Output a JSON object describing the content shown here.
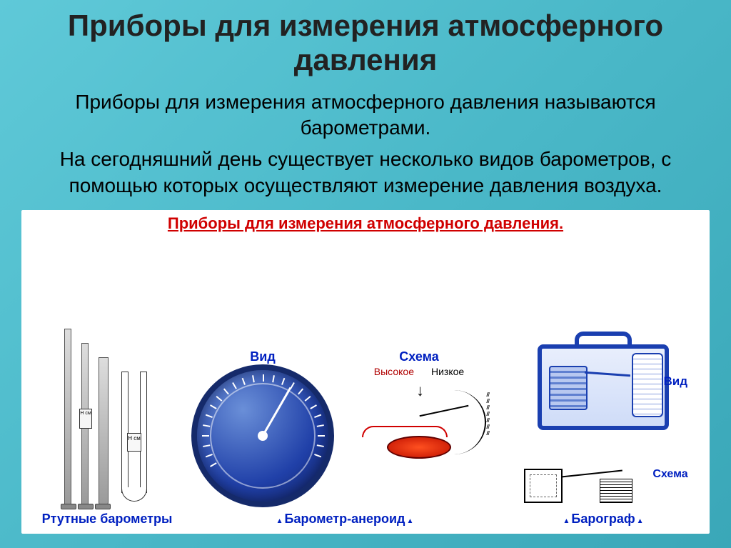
{
  "title": "Приборы для измерения атмосферного давления",
  "subtitle_plain": "Приборы для измерения атмосферного давления называются ",
  "subtitle_bold": "барометрами.",
  "description": "На сегодняшний день существует несколько видов барометров, с помощью которых осуществляют измерение давления воздуха.",
  "figure": {
    "title": "Приборы для измерения атмосферного давления.",
    "mercury": {
      "caption": "Ртутные   барометры",
      "scale_label": "Н\nсм"
    },
    "aneroid": {
      "view_label": "Вид",
      "schema_label": "Схема",
      "high": "Высокое",
      "low": "Низкое",
      "caption": "Барометр-анероид"
    },
    "barograph": {
      "view_label": "Вид",
      "schema_label": "Схема",
      "caption": "Барограф"
    },
    "colors": {
      "title_color": "#d00000",
      "label_color": "#0020c0",
      "gauge_rim": "#152a6a",
      "gauge_face_light": "#6a8fd8",
      "gauge_face_dark": "#102060",
      "capsule_hot": "#ff5020",
      "capsule_dark": "#c01000",
      "barograph_blue": "#1a3fb0",
      "background_gradient": [
        "#5fc9d8",
        "#3aa7b8"
      ]
    }
  }
}
